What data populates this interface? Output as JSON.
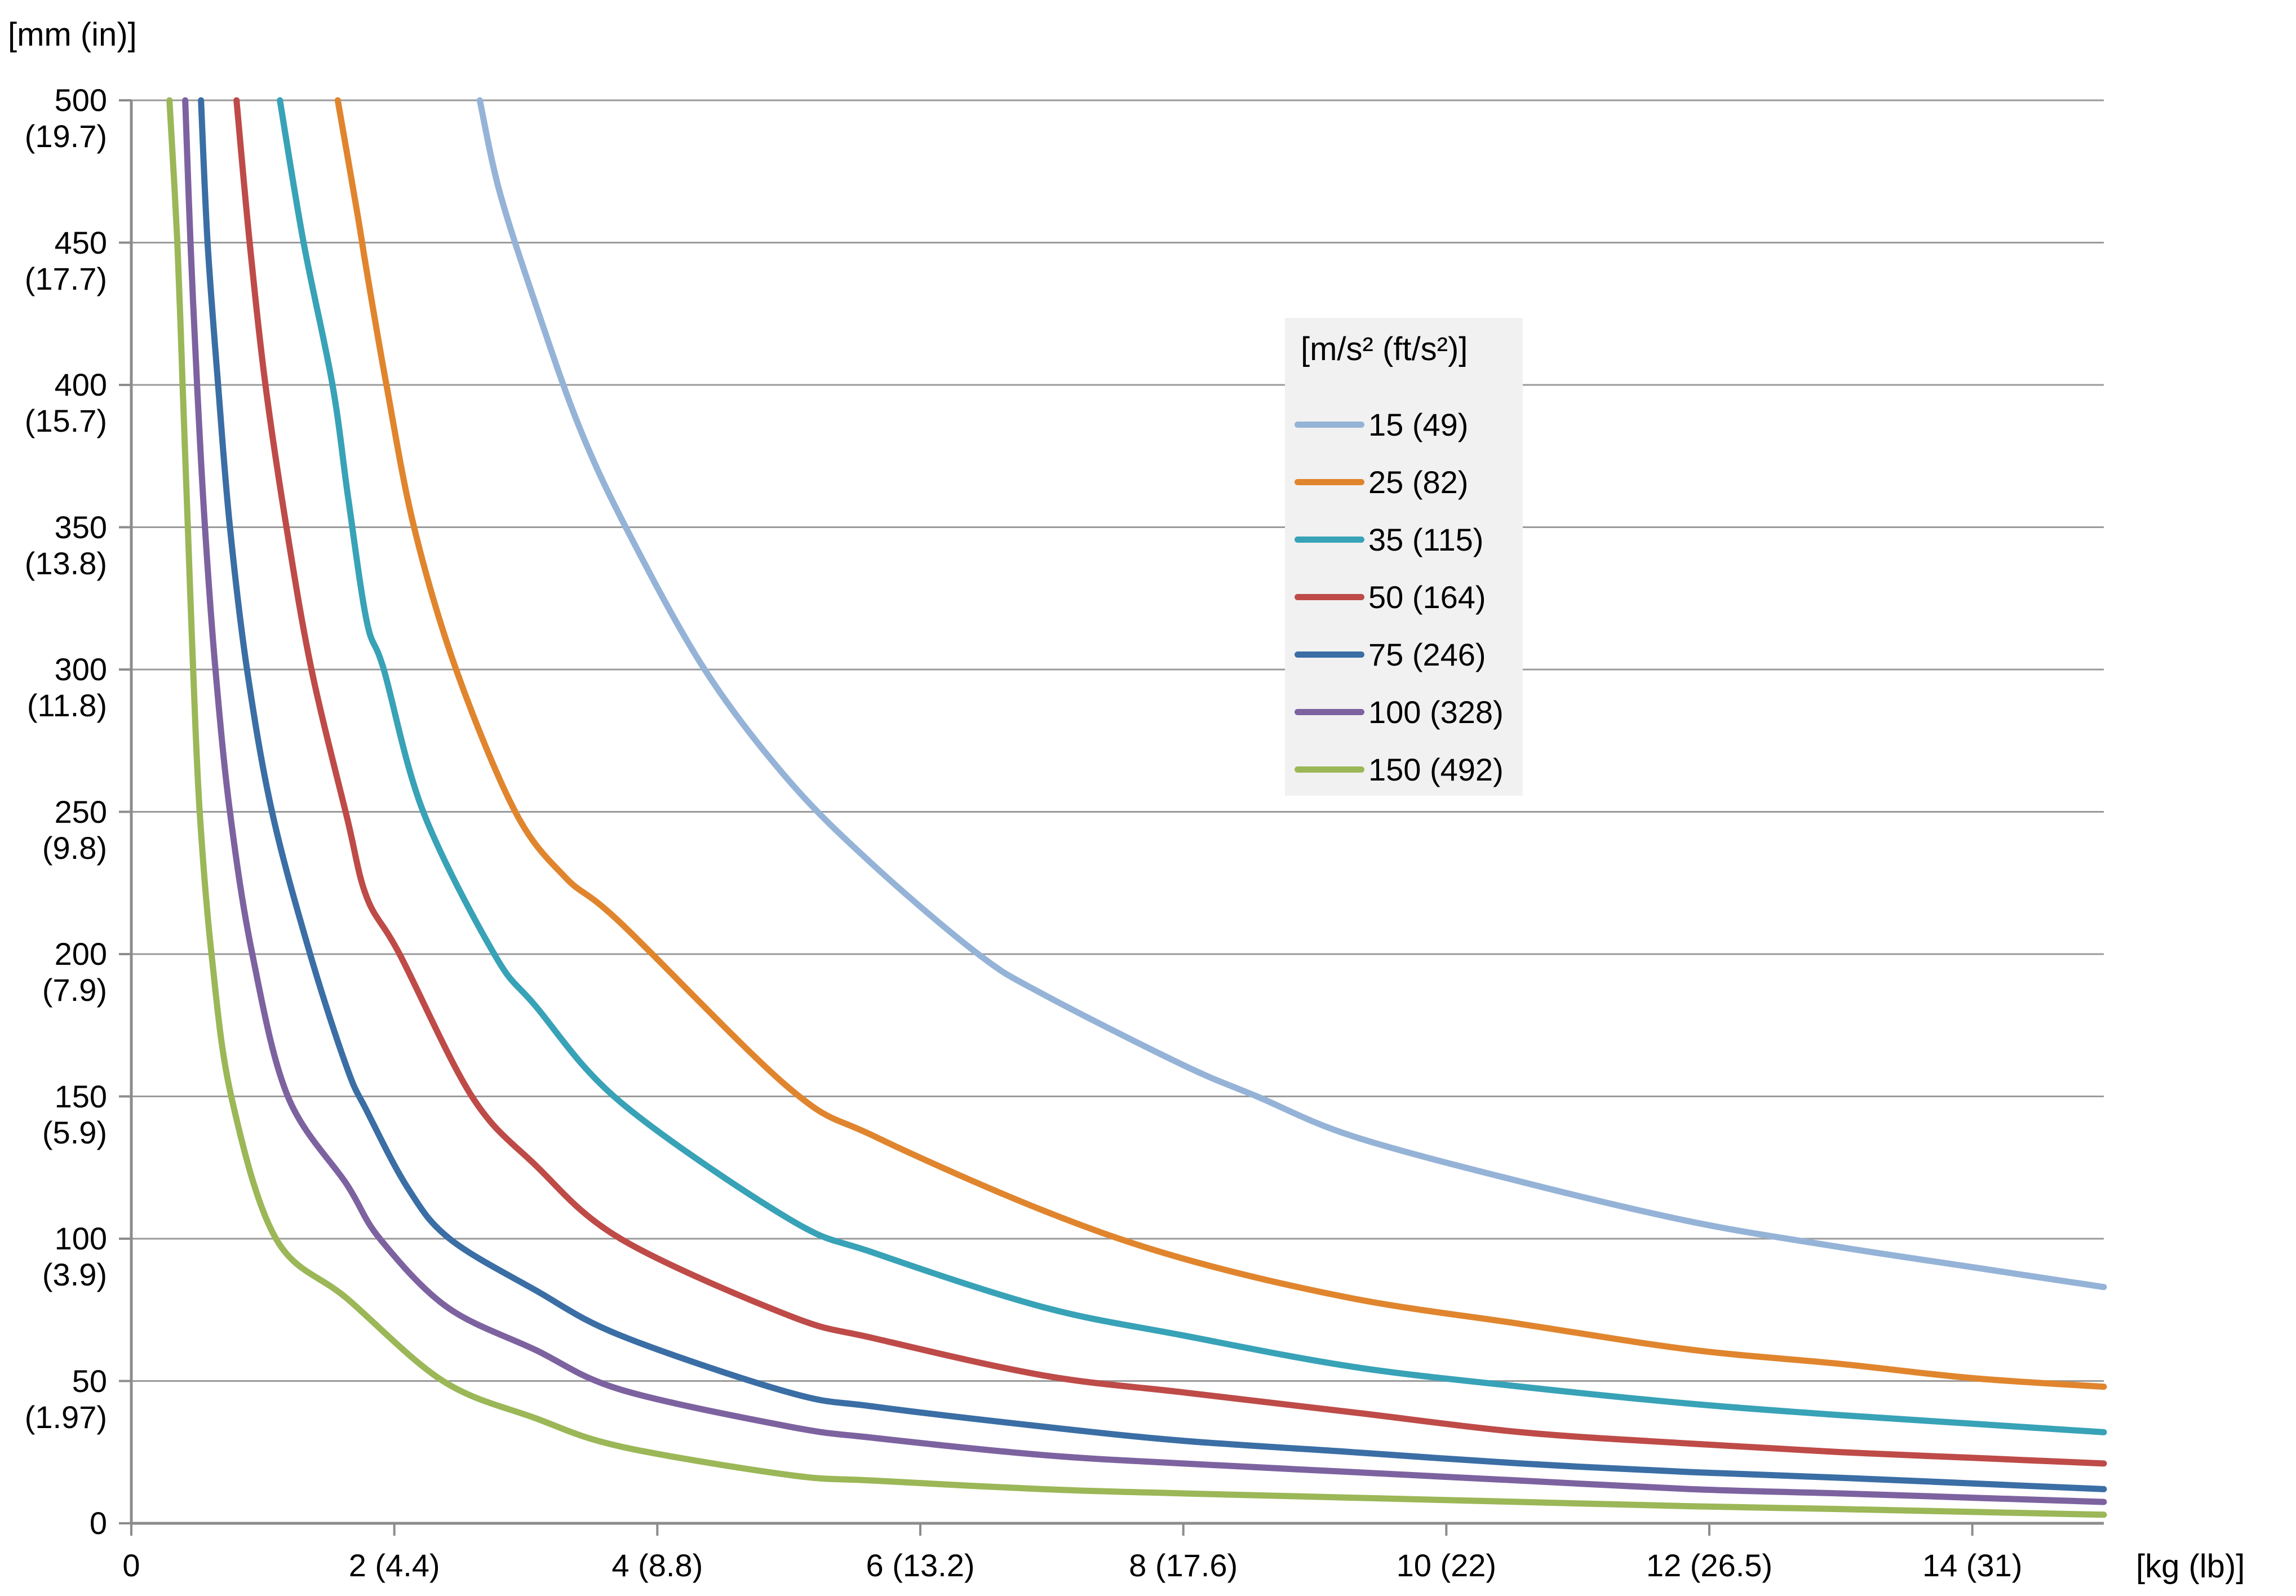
{
  "y_axis_unit": "[mm (in)]",
  "x_axis_unit": "[kg (lb)]",
  "legend": {
    "title": "[m/s² (ft/s²)]",
    "background": "#f1f1f1"
  },
  "style": {
    "gridline_color": "#9a9a9a",
    "axis_color": "#8c8c8c",
    "curve_width": 11
  },
  "chart_data": {
    "type": "line",
    "title": "",
    "xlabel": "[kg (lb)]",
    "ylabel": "[mm (in)]",
    "xlim": [
      0,
      15
    ],
    "ylim": [
      0,
      500
    ],
    "grid": "horizontal",
    "legend_position": "upper-right-inside",
    "y_ticks": [
      {
        "value": 500,
        "label": "500",
        "sub": "(19.7)"
      },
      {
        "value": 450,
        "label": "450",
        "sub": "(17.7)"
      },
      {
        "value": 400,
        "label": "400",
        "sub": "(15.7)"
      },
      {
        "value": 350,
        "label": "350",
        "sub": "(13.8)"
      },
      {
        "value": 300,
        "label": "300",
        "sub": "(11.8)"
      },
      {
        "value": 250,
        "label": "250",
        "sub": "(9.8)"
      },
      {
        "value": 200,
        "label": "200",
        "sub": "(7.9)"
      },
      {
        "value": 150,
        "label": "150",
        "sub": "(5.9)"
      },
      {
        "value": 100,
        "label": "100",
        "sub": "(3.9)"
      },
      {
        "value": 50,
        "label": "50",
        "sub": "(1.97)"
      },
      {
        "value": 0,
        "label": "0",
        "sub": ""
      }
    ],
    "x_ticks": [
      {
        "value": 0,
        "label": "0"
      },
      {
        "value": 2,
        "label": "2 (4.4)"
      },
      {
        "value": 4,
        "label": "4 (8.8)"
      },
      {
        "value": 6,
        "label": "6 (13.2)"
      },
      {
        "value": 8,
        "label": "8 (17.6)"
      },
      {
        "value": 10,
        "label": "10 (22)"
      },
      {
        "value": 12,
        "label": "12 (26.5)"
      },
      {
        "value": 14,
        "label": "14 (31)"
      }
    ],
    "series": [
      {
        "name": "15 (49)",
        "color": "#95b3d7",
        "points": [
          [
            2.65,
            500
          ],
          [
            2.8,
            468
          ],
          [
            3.07,
            429
          ],
          [
            3.4,
            386
          ],
          [
            3.76,
            350
          ],
          [
            4.36,
            300
          ],
          [
            5.0,
            261
          ],
          [
            5.65,
            231
          ],
          [
            6.44,
            200
          ],
          [
            6.93,
            186
          ],
          [
            8.0,
            161
          ],
          [
            8.56,
            150
          ],
          [
            9.29,
            136
          ],
          [
            10.57,
            120
          ],
          [
            11.86,
            106
          ],
          [
            13.0,
            97
          ],
          [
            14.0,
            90
          ],
          [
            15.0,
            83
          ]
        ]
      },
      {
        "name": "25 (82)",
        "color": "#e0852e",
        "points": [
          [
            1.57,
            500
          ],
          [
            1.72,
            460
          ],
          [
            1.79,
            440
          ],
          [
            1.94,
            400
          ],
          [
            2.15,
            350
          ],
          [
            2.47,
            300
          ],
          [
            2.92,
            250
          ],
          [
            3.3,
            227
          ],
          [
            3.72,
            211
          ],
          [
            5.0,
            153
          ],
          [
            5.65,
            136
          ],
          [
            6.93,
            110
          ],
          [
            8.0,
            93
          ],
          [
            9.29,
            79
          ],
          [
            10.57,
            70
          ],
          [
            11.86,
            61
          ],
          [
            13.0,
            56
          ],
          [
            14.0,
            51
          ],
          [
            15.0,
            48
          ]
        ]
      },
      {
        "name": "35 (115)",
        "color": "#38a2b7",
        "points": [
          [
            1.13,
            500
          ],
          [
            1.31,
            450
          ],
          [
            1.53,
            400
          ],
          [
            1.65,
            360
          ],
          [
            1.79,
            317
          ],
          [
            1.92,
            300
          ],
          [
            2.22,
            250
          ],
          [
            2.76,
            200
          ],
          [
            3.07,
            182
          ],
          [
            3.72,
            148
          ],
          [
            5.0,
            107
          ],
          [
            5.65,
            95
          ],
          [
            6.93,
            76
          ],
          [
            8.0,
            66
          ],
          [
            9.29,
            55
          ],
          [
            10.57,
            48
          ],
          [
            11.86,
            42
          ],
          [
            13.0,
            38
          ],
          [
            14.0,
            35
          ],
          [
            15.0,
            32
          ]
        ]
      },
      {
        "name": "50 (164)",
        "color": "#be4b48",
        "points": [
          [
            0.8,
            500
          ],
          [
            0.9,
            450
          ],
          [
            1.02,
            400
          ],
          [
            1.18,
            350
          ],
          [
            1.37,
            300
          ],
          [
            1.64,
            248
          ],
          [
            1.79,
            220
          ],
          [
            2.04,
            200
          ],
          [
            2.59,
            150
          ],
          [
            3.07,
            126
          ],
          [
            3.72,
            100
          ],
          [
            5.0,
            73
          ],
          [
            5.65,
            65
          ],
          [
            6.93,
            52
          ],
          [
            8.0,
            46
          ],
          [
            9.29,
            39
          ],
          [
            10.57,
            32
          ],
          [
            11.86,
            28
          ],
          [
            13.0,
            25
          ],
          [
            14.0,
            23
          ],
          [
            15.0,
            21
          ]
        ]
      },
      {
        "name": "75 (246)",
        "color": "#3a6ea5",
        "points": [
          [
            0.53,
            500
          ],
          [
            0.58,
            450
          ],
          [
            0.66,
            400
          ],
          [
            0.75,
            350
          ],
          [
            0.88,
            300
          ],
          [
            1.07,
            250
          ],
          [
            1.36,
            200
          ],
          [
            1.64,
            160
          ],
          [
            1.79,
            145
          ],
          [
            2.1,
            118
          ],
          [
            2.42,
            100
          ],
          [
            3.07,
            82
          ],
          [
            3.72,
            66
          ],
          [
            5.0,
            46
          ],
          [
            5.65,
            41
          ],
          [
            6.93,
            34
          ],
          [
            8.0,
            29
          ],
          [
            9.29,
            25
          ],
          [
            10.57,
            21
          ],
          [
            11.86,
            18
          ],
          [
            13.0,
            16
          ],
          [
            14.0,
            14
          ],
          [
            15.0,
            12
          ]
        ]
      },
      {
        "name": "100 (328)",
        "color": "#7d62a0",
        "points": [
          [
            0.41,
            500
          ],
          [
            0.45,
            450
          ],
          [
            0.5,
            400
          ],
          [
            0.56,
            350
          ],
          [
            0.64,
            300
          ],
          [
            0.75,
            250
          ],
          [
            0.92,
            200
          ],
          [
            1.19,
            150
          ],
          [
            1.64,
            119
          ],
          [
            1.89,
            100
          ],
          [
            2.4,
            76
          ],
          [
            3.07,
            61
          ],
          [
            3.72,
            47
          ],
          [
            5.0,
            34
          ],
          [
            5.65,
            30
          ],
          [
            6.93,
            24
          ],
          [
            8.0,
            21
          ],
          [
            9.29,
            18
          ],
          [
            10.57,
            15
          ],
          [
            11.86,
            12
          ],
          [
            13.0,
            10.5
          ],
          [
            14.0,
            9
          ],
          [
            15.0,
            7.5
          ]
        ]
      },
      {
        "name": "150 (492)",
        "color": "#9bb757",
        "points": [
          [
            0.29,
            500
          ],
          [
            0.35,
            450
          ],
          [
            0.39,
            400
          ],
          [
            0.43,
            350
          ],
          [
            0.47,
            300
          ],
          [
            0.52,
            250
          ],
          [
            0.61,
            200
          ],
          [
            0.76,
            150
          ],
          [
            1.1,
            100
          ],
          [
            1.64,
            79
          ],
          [
            2.37,
            50
          ],
          [
            3.07,
            37
          ],
          [
            3.72,
            27
          ],
          [
            5.0,
            17
          ],
          [
            5.65,
            15
          ],
          [
            6.93,
            12
          ],
          [
            8.0,
            10.5
          ],
          [
            9.29,
            9
          ],
          [
            10.57,
            7.5
          ],
          [
            11.86,
            6
          ],
          [
            13.0,
            5
          ],
          [
            14.0,
            4
          ],
          [
            15.0,
            3
          ]
        ]
      }
    ]
  }
}
